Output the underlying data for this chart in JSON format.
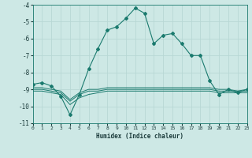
{
  "xlabel": "Humidex (Indice chaleur)",
  "background_color": "#cde8e5",
  "grid_color": "#b8d8d5",
  "line_color": "#1a7a6e",
  "xlim": [
    0,
    23
  ],
  "ylim": [
    -11.0,
    -4.0
  ],
  "xticks": [
    0,
    1,
    2,
    3,
    4,
    5,
    6,
    7,
    8,
    9,
    10,
    11,
    12,
    13,
    14,
    15,
    16,
    17,
    18,
    19,
    20,
    21,
    22,
    23
  ],
  "yticks": [
    -4,
    -5,
    -6,
    -7,
    -8,
    -9,
    -10,
    -11
  ],
  "main_line_x": [
    0,
    1,
    2,
    3,
    4,
    5,
    6,
    7,
    8,
    9,
    10,
    11,
    12,
    13,
    14,
    15,
    16,
    17,
    18,
    19,
    20,
    21,
    22,
    23
  ],
  "main_line_y": [
    -8.7,
    -8.6,
    -8.8,
    -9.4,
    -10.5,
    -9.3,
    -7.8,
    -6.6,
    -5.5,
    -5.3,
    -4.8,
    -4.2,
    -4.5,
    -6.3,
    -5.8,
    -5.7,
    -6.3,
    -7.0,
    -7.0,
    -8.5,
    -9.3,
    -9.0,
    -9.2,
    -9.0
  ],
  "line2_x": [
    0,
    1,
    2,
    3,
    4,
    5,
    6,
    7,
    8,
    9,
    10,
    11,
    12,
    13,
    14,
    15,
    16,
    17,
    18,
    19,
    20,
    21,
    22,
    23
  ],
  "line2_y": [
    -8.9,
    -8.9,
    -9.0,
    -9.1,
    -9.6,
    -9.2,
    -9.0,
    -9.0,
    -8.9,
    -8.9,
    -8.9,
    -8.9,
    -8.9,
    -8.9,
    -8.9,
    -8.9,
    -8.9,
    -8.9,
    -8.9,
    -8.9,
    -9.0,
    -9.0,
    -9.1,
    -9.0
  ],
  "line3_x": [
    0,
    1,
    2,
    3,
    4,
    5,
    6,
    7,
    8,
    9,
    10,
    11,
    12,
    13,
    14,
    15,
    16,
    17,
    18,
    19,
    20,
    21,
    22,
    23
  ],
  "line3_y": [
    -9.0,
    -9.0,
    -9.1,
    -9.2,
    -9.7,
    -9.3,
    -9.1,
    -9.1,
    -9.0,
    -9.0,
    -9.0,
    -9.0,
    -9.0,
    -9.0,
    -9.0,
    -9.0,
    -9.0,
    -9.0,
    -9.0,
    -9.0,
    -9.1,
    -9.1,
    -9.1,
    -9.1
  ],
  "line4_x": [
    0,
    1,
    2,
    3,
    4,
    5,
    6,
    7,
    8,
    9,
    10,
    11,
    12,
    13,
    14,
    15,
    16,
    17,
    18,
    19,
    20,
    21,
    22,
    23
  ],
  "line4_y": [
    -9.1,
    -9.1,
    -9.2,
    -9.3,
    -9.9,
    -9.5,
    -9.3,
    -9.2,
    -9.1,
    -9.1,
    -9.1,
    -9.1,
    -9.1,
    -9.1,
    -9.1,
    -9.1,
    -9.1,
    -9.1,
    -9.1,
    -9.1,
    -9.2,
    -9.2,
    -9.2,
    -9.2
  ]
}
